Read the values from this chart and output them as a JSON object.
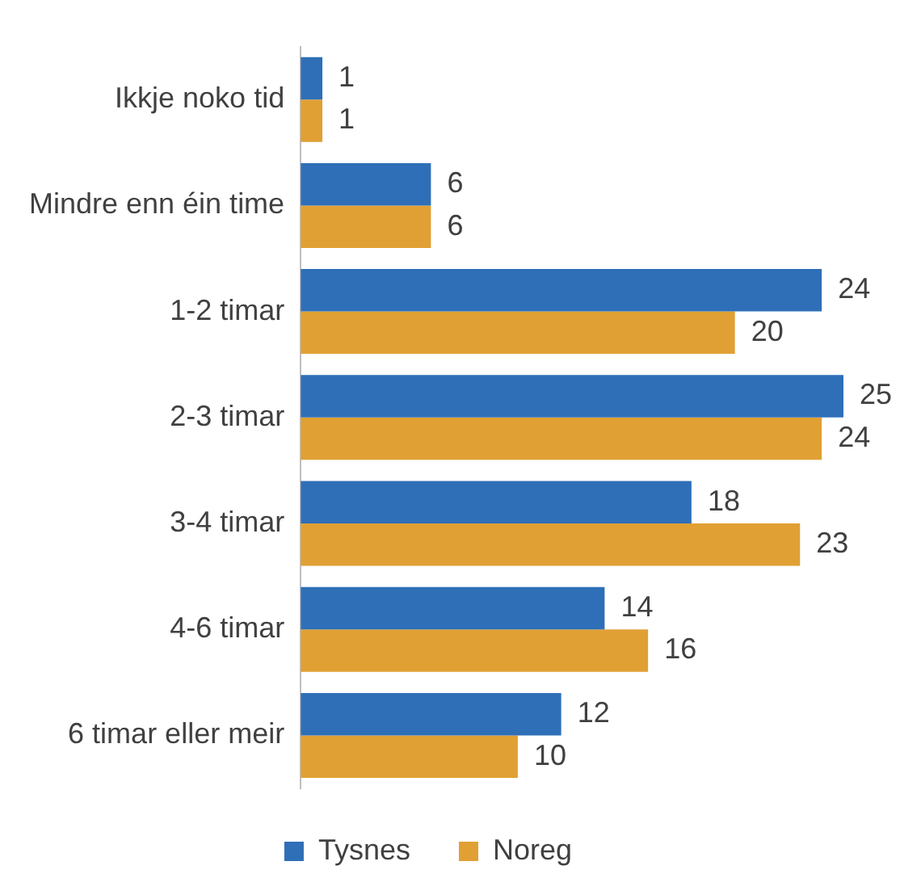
{
  "chart_data": {
    "type": "bar",
    "orientation": "horizontal",
    "categories": [
      "Ikkje noko tid",
      "Mindre enn éin time",
      "1-2 timar",
      "2-3 timar",
      "3-4 timar",
      "4-6 timar",
      "6 timar eller meir"
    ],
    "series": [
      {
        "name": "Tysnes",
        "color": "#2e6fb7",
        "values": [
          1,
          6,
          24,
          25,
          18,
          14,
          12
        ]
      },
      {
        "name": "Noreg",
        "color": "#e0a034",
        "values": [
          1,
          6,
          20,
          24,
          23,
          16,
          10
        ]
      }
    ],
    "data_labels": true,
    "legend": "bottom",
    "grid": false
  }
}
